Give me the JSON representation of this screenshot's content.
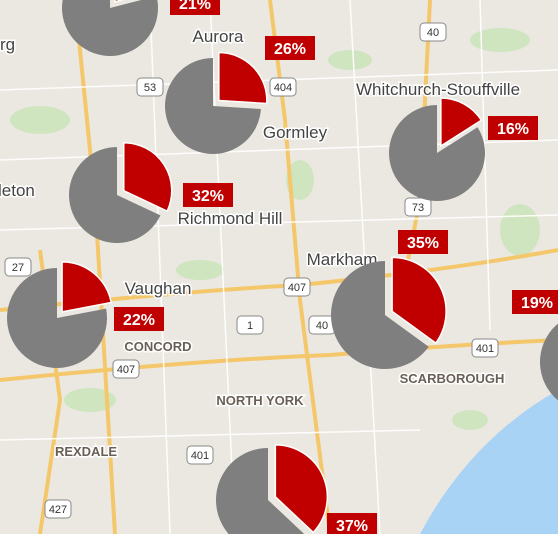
{
  "map": {
    "places": [
      "rg",
      "Aurora",
      "Whitchurch-Stouffville",
      "Gormley",
      "leton",
      "Richmond Hill",
      "Markham",
      "Vaughan",
      "CONCORD",
      "SCARBOROUGH",
      "NORTH YORK",
      "REXDALE"
    ],
    "highways": [
      "40",
      "53",
      "404",
      "73",
      "27",
      "407",
      "1",
      "40",
      "407",
      "401",
      "401",
      "427"
    ],
    "pies": {
      "values": [
        21,
        26,
        16,
        32,
        22,
        35,
        19,
        37
      ],
      "value_labels": [
        "21%",
        "26%",
        "16%",
        "32%",
        "22%",
        "35%",
        "19%",
        "37%"
      ]
    }
  }
}
